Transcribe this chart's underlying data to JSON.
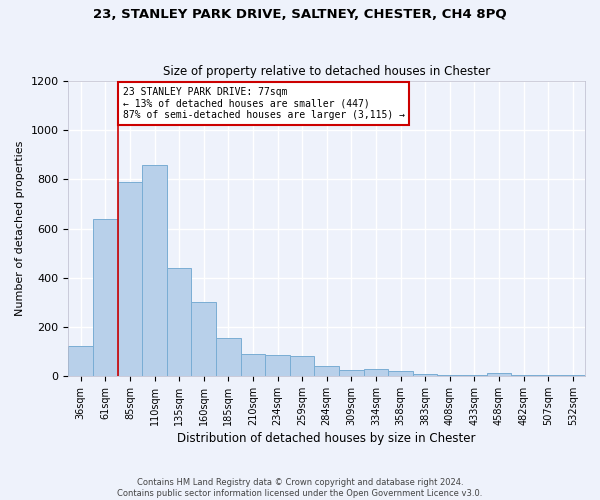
{
  "title": "23, STANLEY PARK DRIVE, SALTNEY, CHESTER, CH4 8PQ",
  "subtitle": "Size of property relative to detached houses in Chester",
  "xlabel": "Distribution of detached houses by size in Chester",
  "ylabel": "Number of detached properties",
  "categories": [
    "36sqm",
    "61sqm",
    "85sqm",
    "110sqm",
    "135sqm",
    "160sqm",
    "185sqm",
    "210sqm",
    "234sqm",
    "259sqm",
    "284sqm",
    "309sqm",
    "334sqm",
    "358sqm",
    "383sqm",
    "408sqm",
    "433sqm",
    "458sqm",
    "482sqm",
    "507sqm",
    "532sqm"
  ],
  "values": [
    120,
    640,
    790,
    860,
    440,
    300,
    155,
    90,
    85,
    80,
    40,
    25,
    28,
    22,
    10,
    5,
    3,
    12,
    2,
    2,
    2
  ],
  "bar_color": "#b8d0ea",
  "bar_edgecolor": "#7aadd4",
  "background_color": "#eef2fb",
  "grid_color": "#ffffff",
  "annotation_box_line1": "23 STANLEY PARK DRIVE: 77sqm",
  "annotation_box_line2": "← 13% of detached houses are smaller (447)",
  "annotation_box_line3": "87% of semi-detached houses are larger (3,115) →",
  "annotation_box_color": "#ffffff",
  "annotation_box_edgecolor": "#cc0000",
  "property_line_color": "#cc0000",
  "footer_text": "Contains HM Land Registry data © Crown copyright and database right 2024.\nContains public sector information licensed under the Open Government Licence v3.0.",
  "ylim": [
    0,
    1200
  ],
  "yticks": [
    0,
    200,
    400,
    600,
    800,
    1000,
    1200
  ]
}
